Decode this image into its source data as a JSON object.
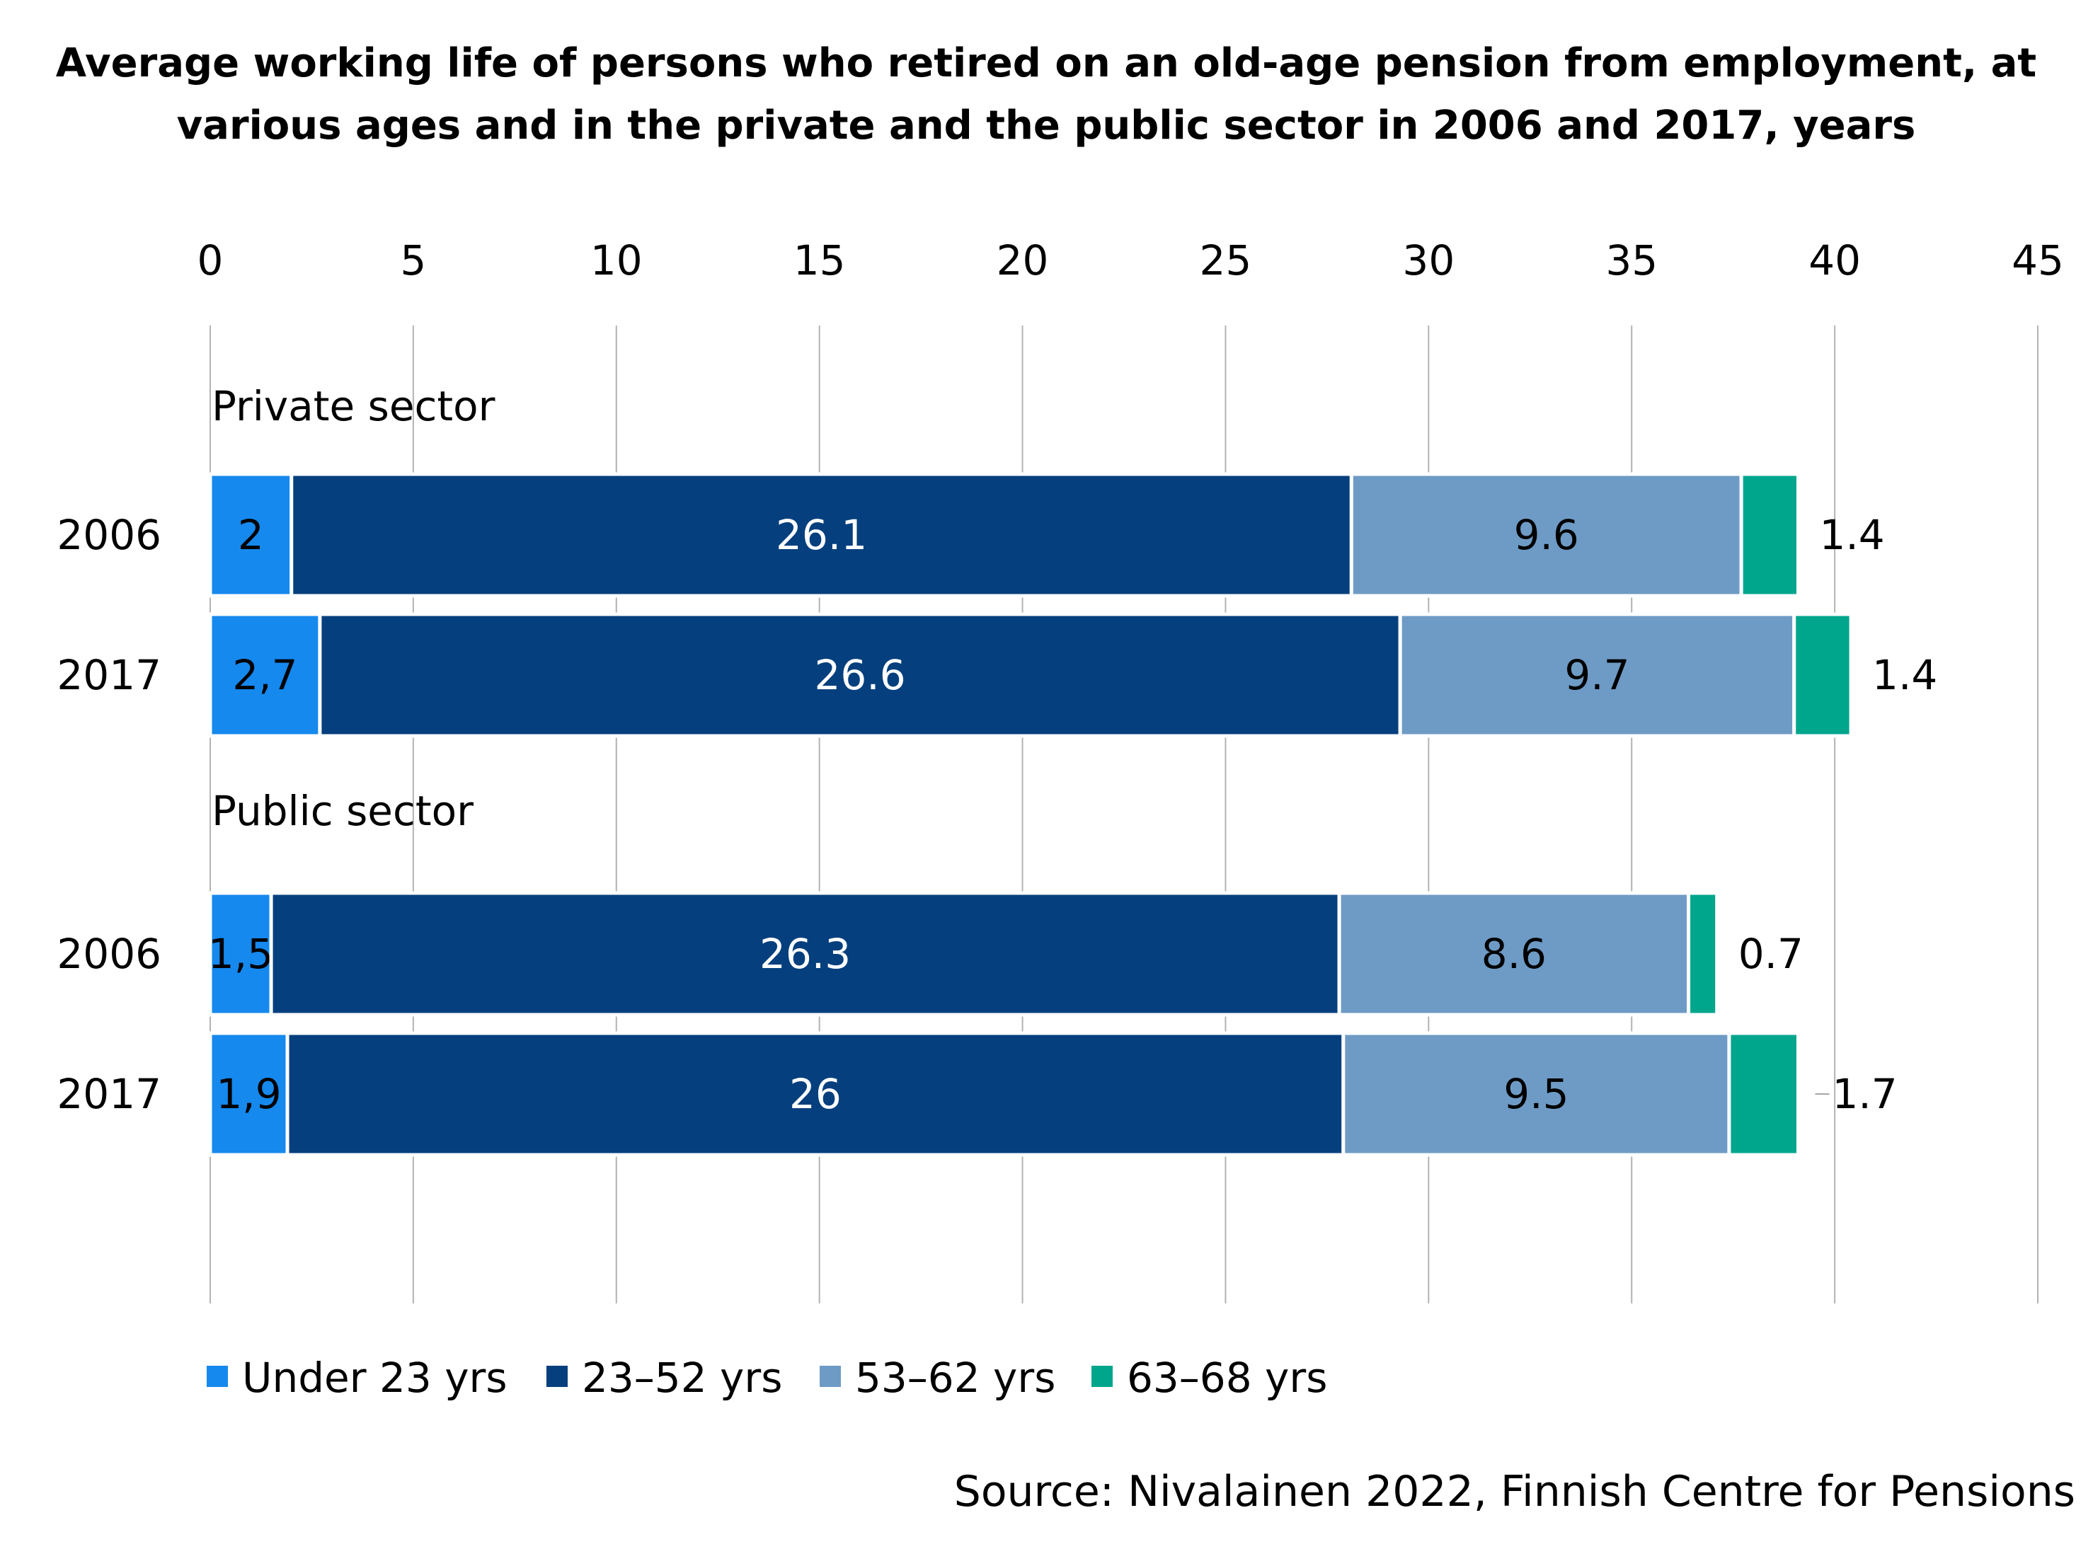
{
  "chart_data": {
    "type": "bar",
    "orientation": "horizontal",
    "stacked": true,
    "title_lines": [
      "Average working life of persons who retired on an old-age pension from employment, at",
      "various ages and in the private and the public sector in 2006 and 2017, years"
    ],
    "xlim": [
      0,
      45
    ],
    "x_ticks": [
      "0",
      "5",
      "10",
      "15",
      "20",
      "25",
      "30",
      "35",
      "40",
      "45"
    ],
    "x_tick_values": [
      0,
      5,
      10,
      15,
      20,
      25,
      30,
      35,
      40,
      45
    ],
    "grid": true,
    "legend_position": "bottom-left",
    "groups": [
      "Private sector",
      "Public sector"
    ],
    "categories": [
      {
        "group": 0,
        "label": "2006"
      },
      {
        "group": 0,
        "label": "2017"
      },
      {
        "group": 1,
        "label": "2006"
      },
      {
        "group": 1,
        "label": "2017"
      }
    ],
    "series": [
      {
        "name": "Under 23 yrs",
        "color": "#1589EE",
        "label_color": "#000000",
        "values": [
          2,
          2.7,
          1.5,
          1.9
        ],
        "labels": [
          "2",
          "2,7",
          "1,5",
          "1,9"
        ]
      },
      {
        "name": "23–52 yrs",
        "color": "#053F7D",
        "label_color": "#ffffff",
        "values": [
          26.1,
          26.6,
          26.3,
          26
        ],
        "labels": [
          "26.1",
          "26.6",
          "26.3",
          "26"
        ]
      },
      {
        "name": "53–62 yrs",
        "color": "#6E9BC5",
        "label_color": "#000000",
        "values": [
          9.6,
          9.7,
          8.6,
          9.5
        ],
        "labels": [
          "9.6",
          "9.7",
          "8.6",
          "9.5"
        ]
      },
      {
        "name": "63–68 yrs",
        "color": "#00A68C",
        "label_color": "#000000",
        "values": [
          1.4,
          1.4,
          0.7,
          1.7
        ],
        "labels": [
          "1.4",
          "1.4",
          "0.7",
          "1.7"
        ],
        "labels_outside": true
      }
    ]
  },
  "source": "Source: Nivalainen 2022, Finnish Centre for Pensions"
}
